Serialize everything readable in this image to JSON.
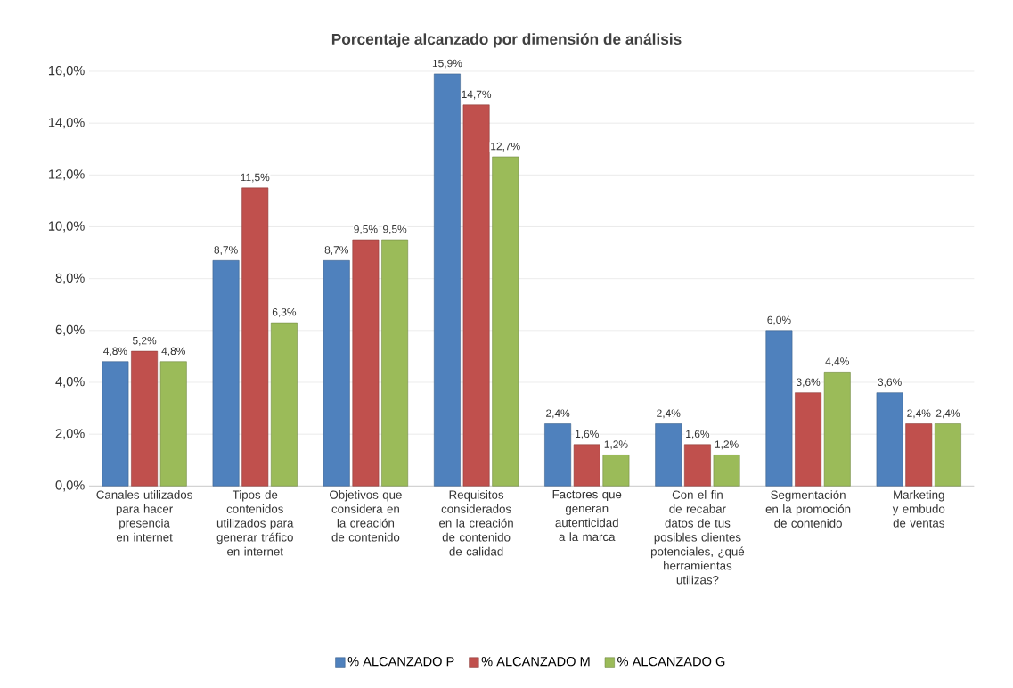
{
  "chart_data": {
    "type": "bar",
    "title": "Porcentaje alcanzado por dimensión de análisis",
    "categories": [
      "Canales utilizados para hacer presencia en internet",
      "Tipos de contenidos utilizados para generar tráfico en internet",
      "Objetivos que considera en la creación de contenido",
      "Requisitos considerados en la creación de contenido de calidad",
      "Factores que generan autenticidad a la marca",
      "Con el fin de recabar datos de tus posibles clientes potenciales, ¿qué herramientas utilizas?",
      "Segmentación en la promoción de contenido",
      "Marketing y embudo de ventas"
    ],
    "series": [
      {
        "name": "% ALCANZADO P",
        "color": "#4f81bd",
        "values": [
          4.8,
          8.7,
          8.7,
          15.9,
          2.4,
          2.4,
          6.0,
          3.6
        ],
        "value_labels": [
          "4,8%",
          "8,7%",
          "8,7%",
          "15,9%",
          "2,4%",
          "2,4%",
          "6,0%",
          "3,6%"
        ]
      },
      {
        "name": "% ALCANZADO M",
        "color": "#c0504d",
        "values": [
          5.2,
          11.5,
          9.5,
          14.7,
          1.6,
          1.6,
          3.6,
          2.4
        ],
        "value_labels": [
          "5,2%",
          "11,5%",
          "9,5%",
          "14,7%",
          "1,6%",
          "1,6%",
          "3,6%",
          "2,4%"
        ]
      },
      {
        "name": "% ALCANZADO G",
        "color": "#9bbb59",
        "values": [
          4.8,
          6.3,
          9.5,
          12.7,
          1.2,
          1.2,
          4.4,
          2.4
        ],
        "value_labels": [
          "4,8%",
          "6,3%",
          "9,5%",
          "12,7%",
          "1,2%",
          "1,2%",
          "4,4%",
          "2,4%"
        ]
      }
    ],
    "ylim": [
      0,
      16
    ],
    "yticks": [
      {
        "value": 0,
        "label": "0,0%"
      },
      {
        "value": 2,
        "label": "2,0%"
      },
      {
        "value": 4,
        "label": "4,0%"
      },
      {
        "value": 6,
        "label": "6,0%"
      },
      {
        "value": 8,
        "label": "8,0%"
      },
      {
        "value": 10,
        "label": "10,0%"
      },
      {
        "value": 12,
        "label": "12,0%"
      },
      {
        "value": 14,
        "label": "14,0%"
      },
      {
        "value": 16,
        "label": "16,0%"
      }
    ],
    "grid": "y",
    "legend": "bottom"
  }
}
